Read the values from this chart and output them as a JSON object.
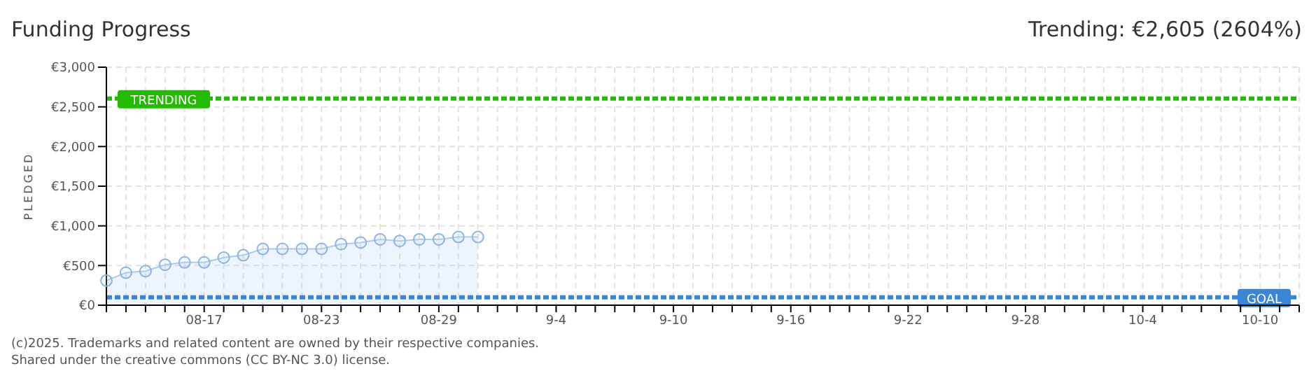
{
  "chart_data": {
    "type": "area",
    "title": "Funding Progress",
    "subtitle": "Trending: €2,605 (2604%)",
    "ylabel": "PLEDGED",
    "categories": [
      null,
      null,
      null,
      null,
      null,
      "08-17",
      null,
      null,
      null,
      null,
      null,
      "08-23",
      null,
      null,
      null,
      null,
      null,
      "08-29",
      null,
      null,
      null,
      null,
      null,
      "9-4",
      null,
      null,
      null,
      null,
      null,
      "9-10",
      null,
      null,
      null,
      null,
      null,
      "9-16",
      null,
      null,
      null,
      null,
      null,
      "9-22",
      null,
      null,
      null,
      null,
      null,
      "9-28",
      null,
      null,
      null,
      null,
      null,
      "10-4",
      null,
      null,
      null,
      null,
      null,
      "10-10",
      null,
      null
    ],
    "values": [
      310,
      410,
      430,
      510,
      540,
      540,
      600,
      630,
      710,
      710,
      710,
      710,
      770,
      790,
      830,
      810,
      830,
      830,
      860,
      860,
      null,
      null,
      null,
      null,
      null,
      null,
      null,
      null,
      null,
      null,
      null,
      null,
      null,
      null,
      null,
      null,
      null,
      null,
      null,
      null,
      null,
      null,
      null,
      null,
      null,
      null,
      null,
      null,
      null,
      null,
      null,
      null,
      null,
      null,
      null,
      null,
      null,
      null,
      null,
      null,
      null,
      null
    ],
    "color": "#a9c9ef",
    "marker": "circle",
    "grid": true,
    "legend": false,
    "ylim": [
      0,
      3000
    ],
    "yticks": [
      {
        "value": 0,
        "label": "€0"
      },
      {
        "value": 500,
        "label": "€500"
      },
      {
        "value": 1000,
        "label": "€1,000"
      },
      {
        "value": 1500,
        "label": "€1,500"
      },
      {
        "value": 2000,
        "label": "€2,000"
      },
      {
        "value": 2500,
        "label": "€2,500"
      },
      {
        "value": 3000,
        "label": "€3,000"
      }
    ],
    "ref_lines": [
      {
        "axis": "y",
        "value": 2605,
        "label": "TRENDING",
        "color": "#22bb00",
        "line_style": "dashed"
      },
      {
        "axis": "y",
        "value": 100,
        "label": "GOAL",
        "color": "#3a86d6",
        "line_style": "dashed"
      }
    ],
    "annotations": [
      "(c)2025. Trademarks and related content are owned by their respective companies.",
      "Shared under the creative commons (CC BY-NC 3.0) license."
    ]
  }
}
